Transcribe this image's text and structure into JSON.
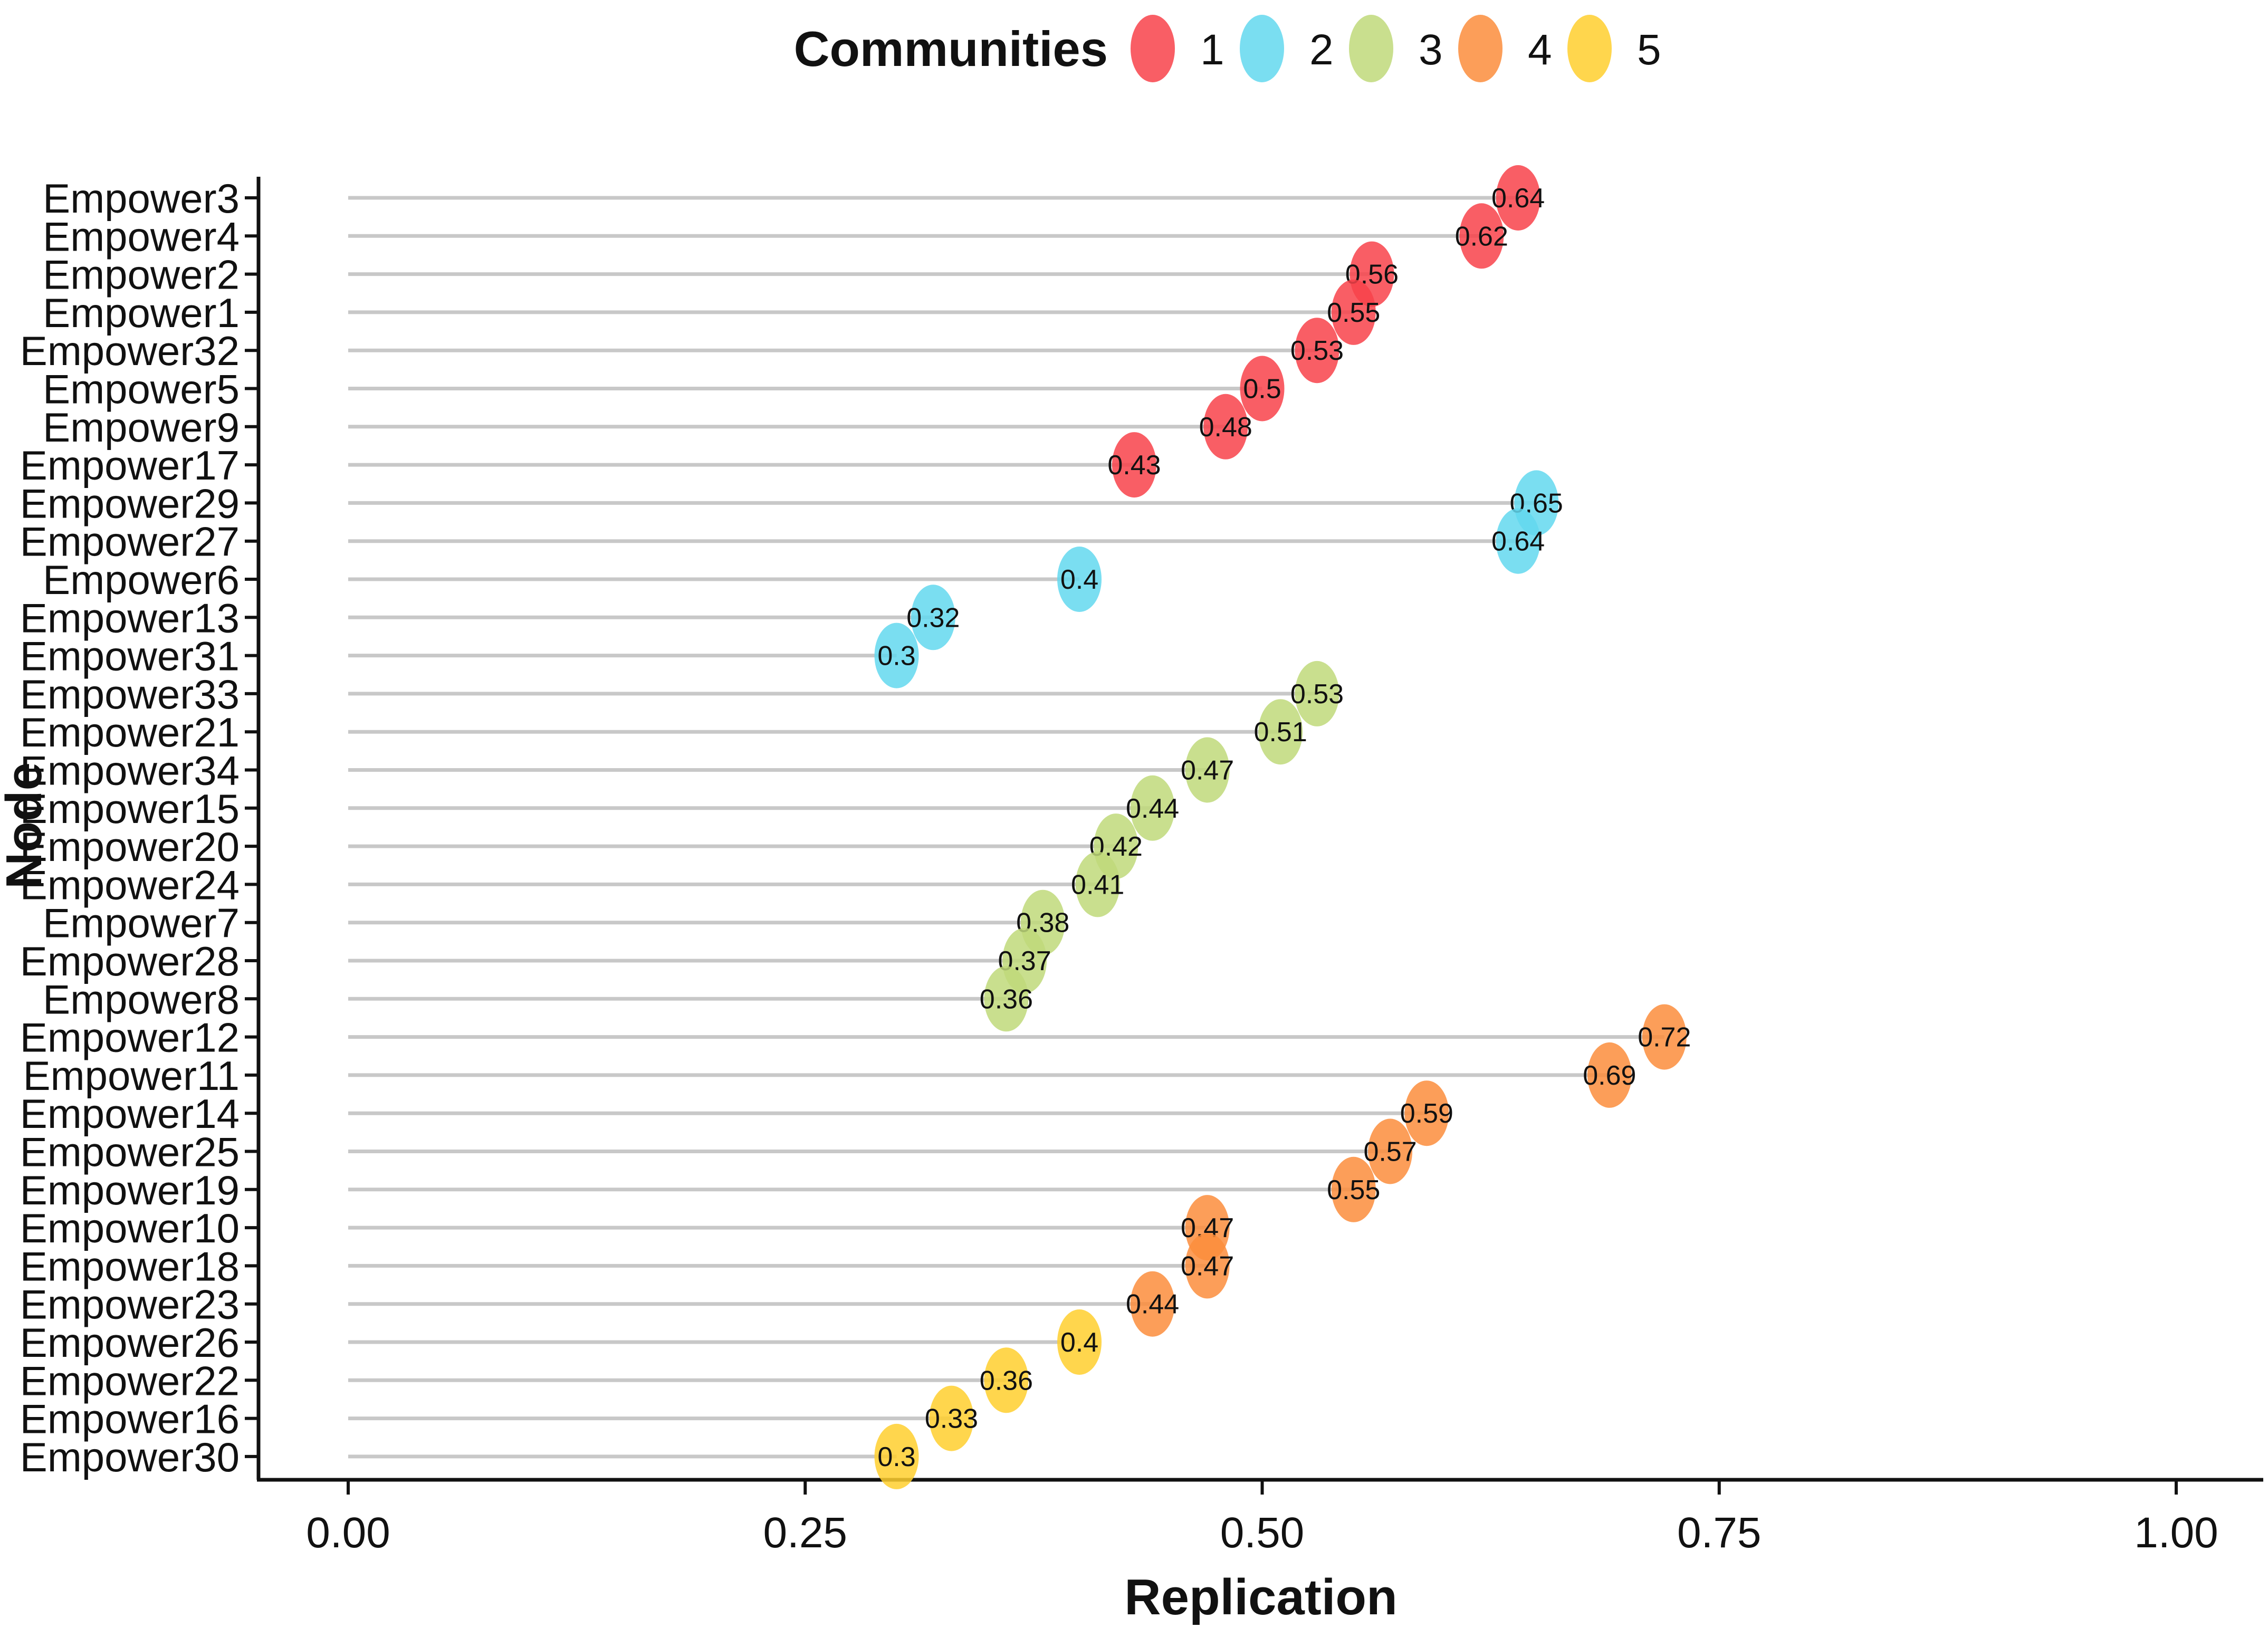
{
  "chart_data": {
    "type": "lollipop",
    "xlabel": "Replication",
    "ylabel": "Node",
    "xlim": [
      0,
      1
    ],
    "x_ticks": [
      "0.00",
      "0.25",
      "0.50",
      "0.75",
      "1.00"
    ],
    "legend": {
      "title": "Communities",
      "position": "top",
      "entries": [
        {
          "label": "1",
          "color": "#f8424a"
        },
        {
          "label": "2",
          "color": "#63d8ef"
        },
        {
          "label": "3",
          "color": "#bfd97a"
        },
        {
          "label": "4",
          "color": "#fb8d3c"
        },
        {
          "label": "5",
          "color": "#ffcf2e"
        }
      ]
    },
    "points": [
      {
        "node": "Empower3",
        "value": 0.64,
        "label": "0.64",
        "community": "1"
      },
      {
        "node": "Empower4",
        "value": 0.62,
        "label": "0.62",
        "community": "1"
      },
      {
        "node": "Empower2",
        "value": 0.56,
        "label": "0.56",
        "community": "1"
      },
      {
        "node": "Empower1",
        "value": 0.55,
        "label": "0.55",
        "community": "1"
      },
      {
        "node": "Empower32",
        "value": 0.53,
        "label": "0.53",
        "community": "1"
      },
      {
        "node": "Empower5",
        "value": 0.5,
        "label": "0.5",
        "community": "1"
      },
      {
        "node": "Empower9",
        "value": 0.48,
        "label": "0.48",
        "community": "1"
      },
      {
        "node": "Empower17",
        "value": 0.43,
        "label": "0.43",
        "community": "1"
      },
      {
        "node": "Empower29",
        "value": 0.65,
        "label": "0.65",
        "community": "2"
      },
      {
        "node": "Empower27",
        "value": 0.64,
        "label": "0.64",
        "community": "2"
      },
      {
        "node": "Empower6",
        "value": 0.4,
        "label": "0.4",
        "community": "2"
      },
      {
        "node": "Empower13",
        "value": 0.32,
        "label": "0.32",
        "community": "2"
      },
      {
        "node": "Empower31",
        "value": 0.3,
        "label": "0.3",
        "community": "2"
      },
      {
        "node": "Empower33",
        "value": 0.53,
        "label": "0.53",
        "community": "3"
      },
      {
        "node": "Empower21",
        "value": 0.51,
        "label": "0.51",
        "community": "3"
      },
      {
        "node": "Empower34",
        "value": 0.47,
        "label": "0.47",
        "community": "3"
      },
      {
        "node": "Empower15",
        "value": 0.44,
        "label": "0.44",
        "community": "3"
      },
      {
        "node": "Empower20",
        "value": 0.42,
        "label": "0.42",
        "community": "3"
      },
      {
        "node": "Empower24",
        "value": 0.41,
        "label": "0.41",
        "community": "3"
      },
      {
        "node": "Empower7",
        "value": 0.38,
        "label": "0.38",
        "community": "3"
      },
      {
        "node": "Empower28",
        "value": 0.37,
        "label": "0.37",
        "community": "3"
      },
      {
        "node": "Empower8",
        "value": 0.36,
        "label": "0.36",
        "community": "3"
      },
      {
        "node": "Empower12",
        "value": 0.72,
        "label": "0.72",
        "community": "4"
      },
      {
        "node": "Empower11",
        "value": 0.69,
        "label": "0.69",
        "community": "4"
      },
      {
        "node": "Empower14",
        "value": 0.59,
        "label": "0.59",
        "community": "4"
      },
      {
        "node": "Empower25",
        "value": 0.57,
        "label": "0.57",
        "community": "4"
      },
      {
        "node": "Empower19",
        "value": 0.55,
        "label": "0.55",
        "community": "4"
      },
      {
        "node": "Empower10",
        "value": 0.47,
        "label": "0.47",
        "community": "4"
      },
      {
        "node": "Empower18",
        "value": 0.47,
        "label": "0.47",
        "community": "4"
      },
      {
        "node": "Empower23",
        "value": 0.44,
        "label": "0.44",
        "community": "4"
      },
      {
        "node": "Empower26",
        "value": 0.4,
        "label": "0.4",
        "community": "5"
      },
      {
        "node": "Empower22",
        "value": 0.36,
        "label": "0.36",
        "community": "5"
      },
      {
        "node": "Empower16",
        "value": 0.33,
        "label": "0.33",
        "community": "5"
      },
      {
        "node": "Empower30",
        "value": 0.3,
        "label": "0.3",
        "community": "5"
      }
    ]
  }
}
